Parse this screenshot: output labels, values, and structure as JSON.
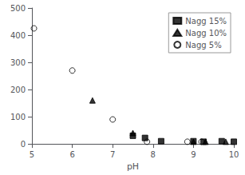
{
  "chart_data": {
    "type": "scatter",
    "xlabel": "pH",
    "series": [
      {
        "name": "Nagg 15%",
        "color": "black",
        "marker": "square",
        "x": [
          7.5,
          7.8,
          8.2,
          9.0,
          9.25,
          9.7,
          10.0
        ],
        "values": [
          30,
          22,
          10,
          10,
          8,
          10,
          8
        ]
      },
      {
        "name": "Nagg 10%",
        "color": "black",
        "marker": "triangle",
        "x": [
          6.5,
          7.5,
          9.0,
          9.3,
          9.8
        ],
        "values": [
          160,
          40,
          8,
          8,
          8
        ]
      },
      {
        "name": "Nagg 5%",
        "color": "black",
        "marker": "circle-open",
        "x": [
          5.05,
          6.0,
          7.0,
          7.85,
          8.85,
          9.2
        ],
        "values": [
          425,
          270,
          90,
          8,
          8,
          8
        ]
      }
    ],
    "xlim": [
      5,
      10
    ],
    "ylim": [
      0,
      500
    ],
    "xticks": [
      5,
      6,
      7,
      8,
      9,
      10
    ],
    "yticks": [
      0,
      100,
      200,
      300,
      400,
      500
    ],
    "grid": false,
    "legend": "upper right"
  }
}
